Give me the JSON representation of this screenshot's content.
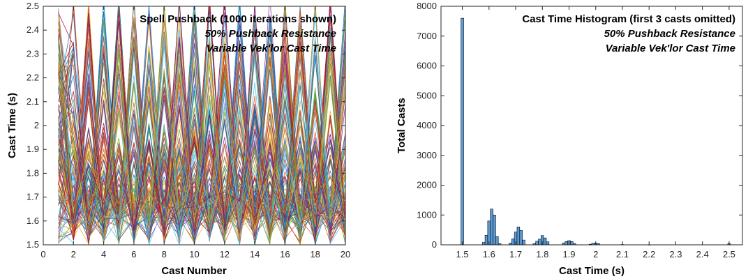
{
  "chart_data": [
    {
      "type": "line",
      "title": "",
      "annotations": [
        "Spell Pushback (1000 iterations shown)",
        "50% Pushback Resistance",
        "Variable Vek'lor Cast Time"
      ],
      "xlabel": "Cast Number",
      "ylabel": "Cast Time (s)",
      "xlim": [
        0,
        20
      ],
      "ylim": [
        1.5,
        2.5
      ],
      "x_ticks": [
        "0",
        "2",
        "4",
        "6",
        "8",
        "10",
        "12",
        "14",
        "16",
        "18",
        "20"
      ],
      "y_ticks": [
        "1.5",
        "1.6",
        "1.7",
        "1.8",
        "1.9",
        "2",
        "2.1",
        "2.2",
        "2.3",
        "2.4",
        "2.5"
      ],
      "grid": false,
      "legend": "none",
      "x": [
        1,
        2,
        3,
        4,
        5,
        6,
        7,
        8,
        9,
        10,
        11,
        12,
        13,
        14,
        15,
        16,
        17,
        18,
        19,
        20
      ],
      "iterations": 1000,
      "series_count_drawn": 140,
      "colors": [
        "#0072BD",
        "#D95319",
        "#EDB120",
        "#7E2F8E",
        "#77AC30",
        "#4DBEEE",
        "#A2142F"
      ]
    },
    {
      "type": "bar",
      "title": "",
      "annotations": [
        "Cast Time Histogram (first 3 casts omitted)",
        "50% Pushback Resistance",
        "Variable Vek'lor Cast Time"
      ],
      "xlabel": "Cast Time (s)",
      "ylabel": "Total Casts",
      "xlim": [
        1.42,
        2.55
      ],
      "ylim": [
        0,
        8000
      ],
      "x_ticks": [
        "1.5",
        "1.6",
        "1.7",
        "1.8",
        "1.9",
        "2",
        "2.1",
        "2.2",
        "2.3",
        "2.4",
        "2.5"
      ],
      "y_ticks": [
        "0",
        "1000",
        "2000",
        "3000",
        "4000",
        "5000",
        "6000",
        "7000",
        "8000"
      ],
      "grid": false,
      "legend": "none",
      "bar_color": "#5B9BD5",
      "bins": [
        {
          "x": 1.5,
          "value": 7600
        },
        {
          "x": 1.58,
          "value": 80
        },
        {
          "x": 1.59,
          "value": 320
        },
        {
          "x": 1.6,
          "value": 800
        },
        {
          "x": 1.61,
          "value": 1200
        },
        {
          "x": 1.62,
          "value": 1000
        },
        {
          "x": 1.63,
          "value": 280
        },
        {
          "x": 1.64,
          "value": 40
        },
        {
          "x": 1.68,
          "value": 60
        },
        {
          "x": 1.69,
          "value": 200
        },
        {
          "x": 1.7,
          "value": 430
        },
        {
          "x": 1.71,
          "value": 600
        },
        {
          "x": 1.72,
          "value": 480
        },
        {
          "x": 1.73,
          "value": 160
        },
        {
          "x": 1.77,
          "value": 40
        },
        {
          "x": 1.78,
          "value": 120
        },
        {
          "x": 1.79,
          "value": 190
        },
        {
          "x": 1.8,
          "value": 310
        },
        {
          "x": 1.81,
          "value": 230
        },
        {
          "x": 1.82,
          "value": 100
        },
        {
          "x": 1.88,
          "value": 60
        },
        {
          "x": 1.89,
          "value": 110
        },
        {
          "x": 1.9,
          "value": 140
        },
        {
          "x": 1.91,
          "value": 110
        },
        {
          "x": 1.92,
          "value": 40
        },
        {
          "x": 1.98,
          "value": 20
        },
        {
          "x": 1.99,
          "value": 50
        },
        {
          "x": 2.0,
          "value": 60
        },
        {
          "x": 2.01,
          "value": 40
        },
        {
          "x": 2.1,
          "value": 10
        },
        {
          "x": 2.2,
          "value": 5
        },
        {
          "x": 2.5,
          "value": 40
        }
      ]
    }
  ]
}
